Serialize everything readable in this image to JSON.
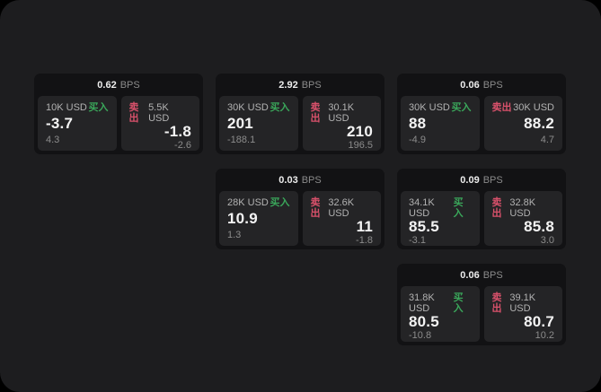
{
  "app": {
    "colors": {
      "background": "#000000",
      "surface": "#1d1d1f",
      "card": "#121214",
      "panel": "#242426",
      "buy": "#3aa65a",
      "sell": "#d9516b"
    },
    "unit_label": "BPS",
    "buy_label": "买入",
    "sell_label": "卖出"
  },
  "cards": [
    {
      "row": 1,
      "col": 1,
      "bps": "0.62",
      "buy": {
        "amount": "10K USD",
        "price": "-3.7",
        "delta": "4.3"
      },
      "sell": {
        "amount": "5.5K USD",
        "price": "-1.8",
        "delta": "-2.6"
      }
    },
    {
      "row": 1,
      "col": 2,
      "bps": "2.92",
      "buy": {
        "amount": "30K USD",
        "price": "201",
        "delta": "-188.1"
      },
      "sell": {
        "amount": "30.1K USD",
        "price": "210",
        "delta": "196.5"
      }
    },
    {
      "row": 1,
      "col": 3,
      "bps": "0.06",
      "buy": {
        "amount": "30K USD",
        "price": "88",
        "delta": "-4.9"
      },
      "sell": {
        "amount": "30K USD",
        "price": "88.2",
        "delta": "4.7"
      }
    },
    {
      "row": 2,
      "col": 2,
      "bps": "0.03",
      "buy": {
        "amount": "28K USD",
        "price": "10.9",
        "delta": "1.3"
      },
      "sell": {
        "amount": "32.6K USD",
        "price": "11",
        "delta": "-1.8"
      }
    },
    {
      "row": 2,
      "col": 3,
      "bps": "0.09",
      "buy": {
        "amount": "34.1K USD",
        "price": "85.5",
        "delta": "-3.1"
      },
      "sell": {
        "amount": "32.8K USD",
        "price": "85.8",
        "delta": "3.0"
      }
    },
    {
      "row": 3,
      "col": 3,
      "bps": "0.06",
      "buy": {
        "amount": "31.8K USD",
        "price": "80.5",
        "delta": "-10.8"
      },
      "sell": {
        "amount": "39.1K USD",
        "price": "80.7",
        "delta": "10.2"
      }
    }
  ]
}
